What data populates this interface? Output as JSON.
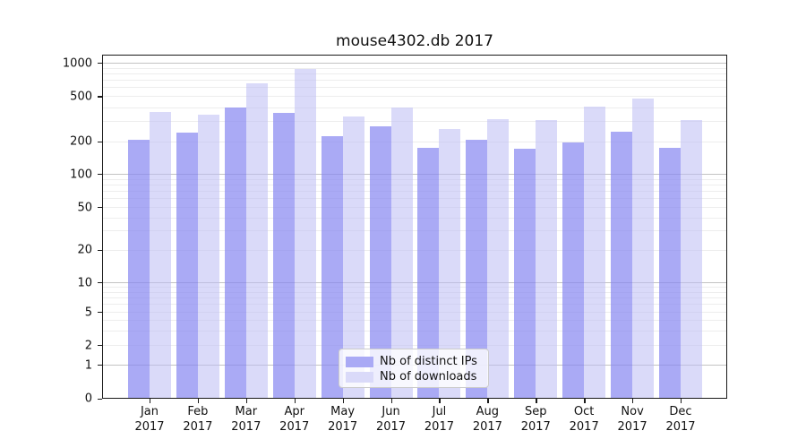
{
  "chart_data": {
    "type": "bar",
    "title": "mouse4302.db 2017",
    "categories": [
      "Jan",
      "Feb",
      "Mar",
      "Apr",
      "May",
      "Jun",
      "Jul",
      "Aug",
      "Sep",
      "Oct",
      "Nov",
      "Dec"
    ],
    "x_year_label": "2017",
    "series": [
      {
        "name": "Nb of distinct IPs",
        "color": "rgba(134,134,241,0.7)",
        "legend_color": "#aaaaf5",
        "values": [
          205,
          240,
          400,
          355,
          222,
          268,
          172,
          205,
          169,
          193,
          243,
          172
        ]
      },
      {
        "name": "Nb of downloads",
        "color": "rgba(188,188,244,0.55)",
        "legend_color": "#dadaf9",
        "values": [
          365,
          345,
          650,
          880,
          332,
          400,
          255,
          313,
          307,
          406,
          476,
          307
        ]
      }
    ],
    "yticks": [
      0,
      1,
      2,
      5,
      10,
      20,
      50,
      100,
      200,
      500,
      1000
    ],
    "major_grid_values": [
      1,
      10,
      100,
      1000
    ],
    "yscale": "log-like (0,1,2,5,10,20,50,100,200,500,1000)",
    "ylim": [
      0,
      1200
    ],
    "grid": true,
    "legend_position": "lower center",
    "xlabel": "",
    "ylabel": ""
  }
}
